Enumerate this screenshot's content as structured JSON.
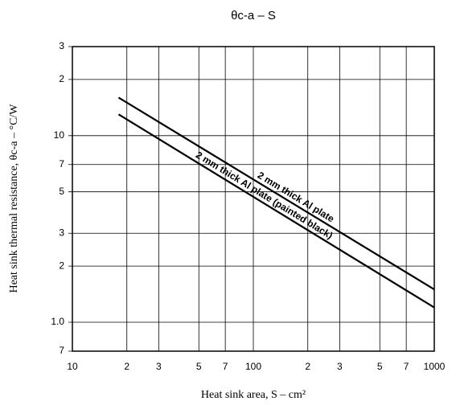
{
  "chart_data": {
    "type": "line",
    "title": "θc-a – S",
    "x_label": "Heat sink area, S – cm²",
    "y_label": "Heat sink thermal resistance, θc-a – °C/W",
    "log_x": true,
    "log_y": true,
    "grid": true,
    "xlim": [
      10,
      1000
    ],
    "xticks": [
      10,
      {
        "value": 20,
        "label": "2"
      },
      {
        "value": 30,
        "label": "3"
      },
      {
        "value": 50,
        "label": "5"
      },
      {
        "value": 70,
        "label": "7"
      },
      100,
      {
        "value": 200,
        "label": "2"
      },
      {
        "value": 300,
        "label": "3"
      },
      {
        "value": 500,
        "label": "5"
      },
      {
        "value": 700,
        "label": "7"
      },
      1000
    ],
    "ylim": [
      0.7,
      30
    ],
    "yticks": [
      {
        "value": 0.7,
        "label": "7"
      },
      {
        "value": 1,
        "label": "1.0"
      },
      2,
      3,
      5,
      7,
      10,
      {
        "value": 20,
        "label": "2"
      },
      {
        "value": 30,
        "label": "3"
      }
    ],
    "x": [
      18,
      1000
    ],
    "series": [
      {
        "name": "2 mm thick Al plate",
        "color": "#000000",
        "values": [
          16,
          1.5
        ]
      },
      {
        "name": "2 mm thick Al plate (painted black)",
        "color": "#000000",
        "values": [
          13,
          1.2
        ]
      }
    ]
  }
}
